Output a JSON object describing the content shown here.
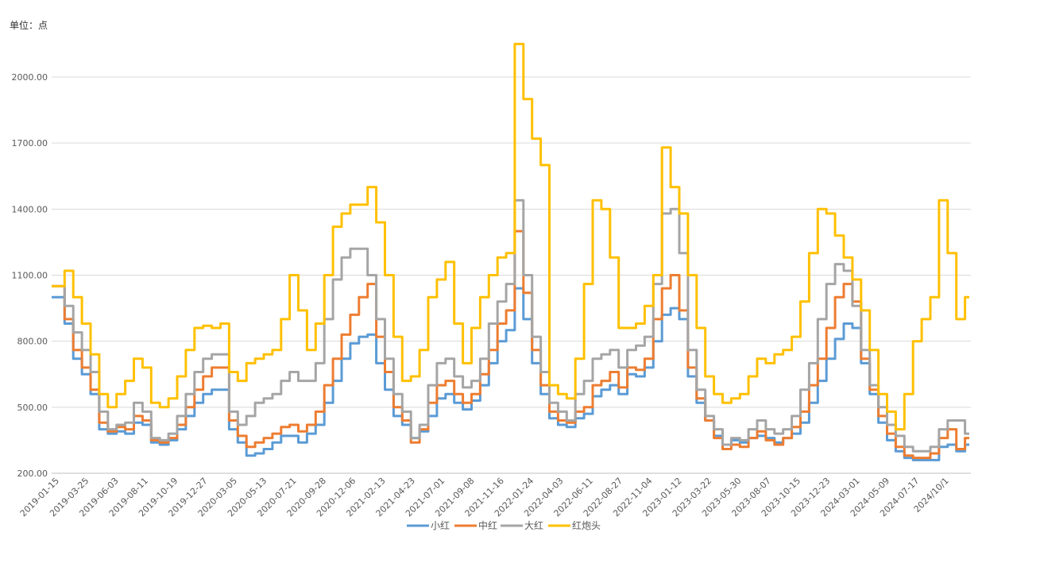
{
  "unit_label": "单位：点",
  "chart_data": {
    "type": "line",
    "ylabel": "单位：点",
    "ylim": [
      200,
      2000
    ],
    "y_ticks": [
      "2000.00",
      "1700.00",
      "1400.00",
      "1100.00",
      "800.00",
      "500.00",
      "200.00"
    ],
    "y_tick_values": [
      2000,
      1700,
      1400,
      1100,
      800,
      500,
      200
    ],
    "grid": true,
    "legend": "bottom",
    "x_ticks": [
      "2019-01-15",
      "2019-03-25",
      "2019-06-03",
      "2019-08-11",
      "2019-10-19",
      "2019-12-27",
      "2020-03-05",
      "2020-05-13",
      "2020-07-21",
      "2020-09-28",
      "2020-12-06",
      "2021-02-13",
      "2021-04-23",
      "2021-07-01",
      "2021-09-08",
      "2021-11-16",
      "2022-01-24",
      "2022-04-03",
      "2022-06-11",
      "2022-08-27",
      "2022-11-04",
      "2023-01-12",
      "2023-03-22",
      "2023-05-30",
      "2023-08-07",
      "2023-10-15",
      "2023-12-23",
      "2024-03-01",
      "2024-05-09",
      "2024-07-17",
      "2024/10/1"
    ],
    "series": [
      {
        "name": "小红",
        "color": "#5B9BD5",
        "values": [
          1000,
          1000,
          880,
          720,
          650,
          560,
          400,
          380,
          390,
          380,
          430,
          420,
          340,
          330,
          350,
          400,
          460,
          520,
          560,
          580,
          580,
          400,
          340,
          280,
          290,
          310,
          340,
          370,
          370,
          340,
          380,
          420,
          520,
          620,
          720,
          790,
          820,
          830,
          700,
          580,
          460,
          420,
          360,
          390,
          460,
          540,
          560,
          520,
          490,
          530,
          600,
          700,
          800,
          850,
          1040,
          900,
          700,
          560,
          450,
          420,
          410,
          450,
          470,
          550,
          580,
          600,
          560,
          650,
          640,
          680,
          800,
          920,
          950,
          900,
          640,
          520,
          440,
          370,
          330,
          350,
          340,
          360,
          370,
          360,
          340,
          360,
          380,
          430,
          520,
          620,
          720,
          810,
          880,
          860,
          700,
          560,
          430,
          350,
          300,
          270,
          260,
          260,
          260,
          320,
          330,
          300,
          330
        ]
      },
      {
        "name": "中红",
        "color": "#ED7D31",
        "values": [
          1050,
          1050,
          900,
          760,
          680,
          580,
          430,
          390,
          410,
          400,
          460,
          440,
          350,
          340,
          360,
          420,
          500,
          580,
          640,
          680,
          680,
          440,
          370,
          320,
          340,
          360,
          380,
          410,
          420,
          390,
          420,
          480,
          600,
          720,
          830,
          920,
          1000,
          1060,
          820,
          660,
          500,
          440,
          340,
          400,
          520,
          600,
          620,
          560,
          520,
          560,
          650,
          760,
          880,
          940,
          1300,
          1020,
          760,
          600,
          480,
          440,
          430,
          480,
          500,
          600,
          620,
          660,
          590,
          680,
          670,
          720,
          900,
          1040,
          1100,
          940,
          680,
          540,
          440,
          360,
          310,
          330,
          320,
          360,
          390,
          350,
          330,
          360,
          410,
          480,
          600,
          720,
          860,
          1000,
          1060,
          980,
          720,
          580,
          460,
          380,
          320,
          280,
          270,
          270,
          290,
          360,
          400,
          310,
          360
        ]
      },
      {
        "name": "大红",
        "color": "#A5A5A5",
        "values": [
          1050,
          1050,
          960,
          840,
          760,
          660,
          480,
          400,
          420,
          430,
          520,
          480,
          360,
          350,
          380,
          460,
          560,
          660,
          720,
          740,
          740,
          480,
          420,
          460,
          520,
          540,
          560,
          620,
          660,
          620,
          620,
          700,
          900,
          1080,
          1180,
          1220,
          1220,
          1100,
          900,
          720,
          560,
          480,
          360,
          420,
          600,
          700,
          720,
          640,
          590,
          620,
          720,
          880,
          980,
          1060,
          1440,
          1100,
          820,
          660,
          520,
          480,
          440,
          560,
          620,
          720,
          740,
          760,
          680,
          760,
          780,
          820,
          1060,
          1380,
          1400,
          1200,
          760,
          580,
          460,
          400,
          330,
          360,
          350,
          400,
          440,
          400,
          380,
          400,
          460,
          580,
          700,
          900,
          1060,
          1150,
          1120,
          960,
          760,
          600,
          500,
          420,
          370,
          320,
          300,
          300,
          320,
          400,
          440,
          440,
          380
        ]
      },
      {
        "name": "红炮头",
        "color": "#FFC000",
        "values": [
          1050,
          1050,
          1120,
          1000,
          880,
          740,
          560,
          500,
          560,
          620,
          720,
          680,
          520,
          500,
          540,
          640,
          760,
          860,
          870,
          860,
          880,
          660,
          620,
          700,
          720,
          740,
          760,
          900,
          1100,
          940,
          760,
          880,
          1100,
          1320,
          1380,
          1420,
          1420,
          1500,
          1340,
          1100,
          820,
          620,
          640,
          760,
          1000,
          1080,
          1160,
          880,
          700,
          860,
          1000,
          1100,
          1180,
          1200,
          2150,
          1900,
          1720,
          1600,
          600,
          560,
          540,
          720,
          1060,
          1440,
          1400,
          1180,
          860,
          860,
          880,
          960,
          1100,
          1680,
          1500,
          1380,
          1100,
          860,
          640,
          560,
          520,
          540,
          560,
          640,
          720,
          700,
          740,
          760,
          820,
          980,
          1200,
          1400,
          1380,
          1280,
          1180,
          1080,
          940,
          760,
          560,
          480,
          400,
          560,
          800,
          900,
          1000,
          1440,
          1200,
          900,
          1000
        ]
      }
    ]
  },
  "legend_items": [
    "小红",
    "中红",
    "大红",
    "红炮头"
  ]
}
